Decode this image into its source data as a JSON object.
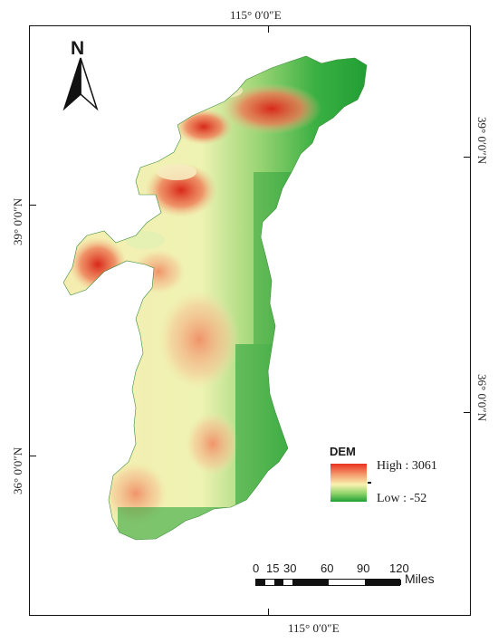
{
  "graticule": {
    "lon_top": "115° 0′0″E",
    "lon_bottom": "115° 0′0″E",
    "lat_left_upper": "39° 0′0″N",
    "lat_left_lower": "36° 0′0″N",
    "lat_right_upper": "39° 0′0″N",
    "lat_right_lower": "36° 0′0″N"
  },
  "north_arrow": {
    "label": "N",
    "icon": "north-arrow-icon"
  },
  "legend": {
    "title": "DEM",
    "high_label": "High : 3061",
    "low_label": "Low : -52",
    "high_color": "#e8311f",
    "mid_color": "#f8f2b0",
    "low_color": "#1ea033"
  },
  "scale_bar": {
    "ticks": [
      "0",
      "15",
      "30",
      "60",
      "90",
      "120"
    ],
    "units": "Miles"
  }
}
